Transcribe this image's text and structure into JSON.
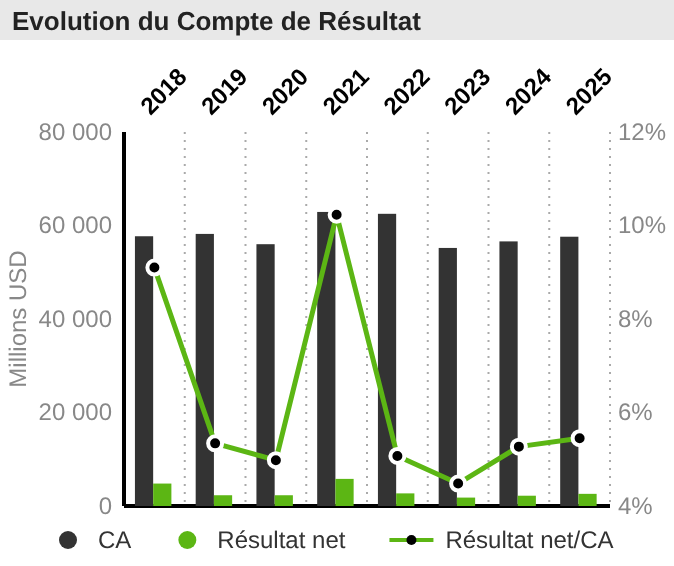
{
  "chart_data": {
    "type": "bar",
    "title": "Evolution du Compte de Résultat",
    "ylabel": "Millions USD",
    "categories": [
      "2018",
      "2019",
      "2020",
      "2021",
      "2022",
      "2023",
      "2024",
      "2025"
    ],
    "series": [
      {
        "name": "CA",
        "color": "#333333",
        "values": [
          57700,
          58200,
          56000,
          62900,
          62500,
          55200,
          56600,
          57600
        ]
      },
      {
        "name": "Résultat net",
        "color": "#5cb614",
        "values": [
          4800,
          2300,
          2300,
          5800,
          2700,
          1800,
          2200,
          2600
        ]
      },
      {
        "name": "Résultat net/CA",
        "type": "line",
        "axis": "y2",
        "color": "#5cb614",
        "marker": "circle",
        "values": [
          9.1,
          5.34,
          4.98,
          10.23,
          5.07,
          4.48,
          5.27,
          5.45
        ]
      }
    ],
    "ylim": [
      0,
      80000
    ],
    "yticks": [
      {
        "value": 0,
        "label": "0"
      },
      {
        "value": 20000,
        "label": "20 000"
      },
      {
        "value": 40000,
        "label": "40 000"
      },
      {
        "value": 60000,
        "label": "60 000"
      },
      {
        "value": 80000,
        "label": "80 000"
      }
    ],
    "y2lim": [
      4,
      12
    ],
    "y2ticks": [
      {
        "value": 4,
        "label": "4%"
      },
      {
        "value": 6,
        "label": "6%"
      },
      {
        "value": 8,
        "label": "8%"
      },
      {
        "value": 10,
        "label": "10%"
      },
      {
        "value": 12,
        "label": "12%"
      }
    ],
    "grid": "x",
    "legend": "bottom"
  }
}
